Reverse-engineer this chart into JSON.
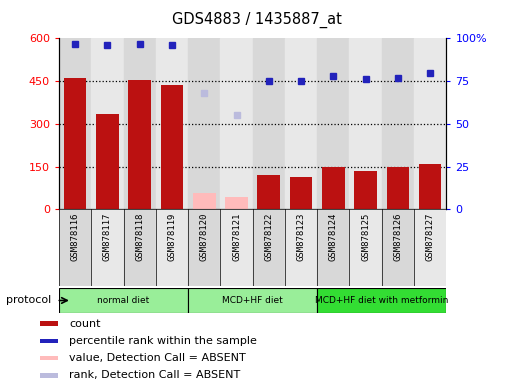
{
  "title": "GDS4883 / 1435887_at",
  "samples": [
    "GSM878116",
    "GSM878117",
    "GSM878118",
    "GSM878119",
    "GSM878120",
    "GSM878121",
    "GSM878122",
    "GSM878123",
    "GSM878124",
    "GSM878125",
    "GSM878126",
    "GSM878127"
  ],
  "count_values": [
    460,
    335,
    455,
    435,
    null,
    null,
    120,
    115,
    148,
    135,
    147,
    158
  ],
  "count_absent": [
    null,
    null,
    null,
    null,
    58,
    42,
    null,
    null,
    null,
    null,
    null,
    null
  ],
  "percentile_values": [
    97,
    96,
    97,
    96,
    null,
    null,
    75,
    75,
    78,
    76,
    77,
    80
  ],
  "percentile_absent": [
    null,
    null,
    null,
    null,
    68,
    55,
    null,
    null,
    null,
    null,
    null,
    null
  ],
  "ylim_left": [
    0,
    600
  ],
  "ylim_right": [
    0,
    100
  ],
  "yticks_left": [
    0,
    150,
    300,
    450,
    600
  ],
  "yticks_right": [
    0,
    25,
    50,
    75,
    100
  ],
  "bar_color_present": "#bb1111",
  "bar_color_absent": "#ffbbbb",
  "dot_color_present": "#2222bb",
  "dot_color_absent": "#bbbbdd",
  "col_bg_even": "#d8d8d8",
  "col_bg_odd": "#e8e8e8",
  "groups": [
    {
      "label": "normal diet",
      "start": 0,
      "end": 3,
      "color": "#99ee99"
    },
    {
      "label": "MCD+HF diet",
      "start": 4,
      "end": 7,
      "color": "#99ee99"
    },
    {
      "label": "MCD+HF diet with metformin",
      "start": 8,
      "end": 11,
      "color": "#33dd33"
    }
  ],
  "legend_items": [
    {
      "label": "count",
      "color": "#bb1111"
    },
    {
      "label": "percentile rank within the sample",
      "color": "#2222bb"
    },
    {
      "label": "value, Detection Call = ABSENT",
      "color": "#ffbbbb"
    },
    {
      "label": "rank, Detection Call = ABSENT",
      "color": "#bbbbdd"
    }
  ]
}
